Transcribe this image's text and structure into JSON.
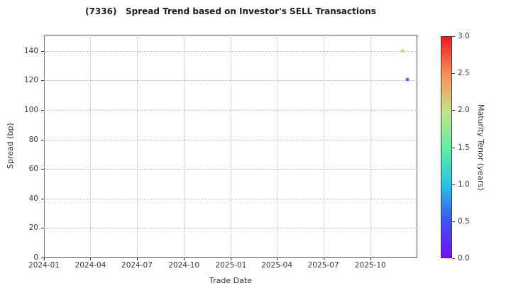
{
  "chart_data": {
    "type": "scatter",
    "title": "(7336)   Spread Trend based on Investor's SELL Transactions",
    "xlabel": "Trade Date",
    "ylabel": "Spread (bp)",
    "xlim": [
      "2024-01-01",
      "2026-01-01"
    ],
    "ylim": [
      0,
      151
    ],
    "grid": "dotted",
    "legend": "none",
    "x_ticks": [
      {
        "label": "2024-01",
        "date": "2024-01-01"
      },
      {
        "label": "2024-04",
        "date": "2024-04-01"
      },
      {
        "label": "2024-07",
        "date": "2024-07-01"
      },
      {
        "label": "2024-10",
        "date": "2024-10-01"
      },
      {
        "label": "2025-01",
        "date": "2025-01-01"
      },
      {
        "label": "2025-04",
        "date": "2025-04-01"
      },
      {
        "label": "2025-07",
        "date": "2025-07-01"
      },
      {
        "label": "2025-10",
        "date": "2025-10-01"
      }
    ],
    "y_ticks": [
      0,
      20,
      40,
      60,
      80,
      100,
      120,
      140
    ],
    "points": [
      {
        "date": "2025-12-03",
        "spread_bp": 140,
        "maturity_tenor_years": 2.1,
        "color": "#d3d66a"
      },
      {
        "date": "2025-12-13",
        "spread_bp": 120.5,
        "maturity_tenor_years": 0.6,
        "color": "#2e7ced"
      }
    ],
    "colorbar": {
      "label": "Maturity Tenor (years)",
      "min": 0.0,
      "max": 3.0,
      "ticks": [
        "0.0",
        "0.5",
        "1.0",
        "1.5",
        "2.0",
        "2.5",
        "3.0"
      ],
      "colormap": "rainbow",
      "gradient_stops": [
        {
          "value": 0.0,
          "color": "#7a0dfc"
        },
        {
          "value": 0.5,
          "color": "#3a55f3"
        },
        {
          "value": 1.0,
          "color": "#27c5e8"
        },
        {
          "value": 1.5,
          "color": "#5ef0a2"
        },
        {
          "value": 2.0,
          "color": "#c8e287"
        },
        {
          "value": 2.5,
          "color": "#fb8d57"
        },
        {
          "value": 3.0,
          "color": "#f01820"
        }
      ]
    }
  }
}
